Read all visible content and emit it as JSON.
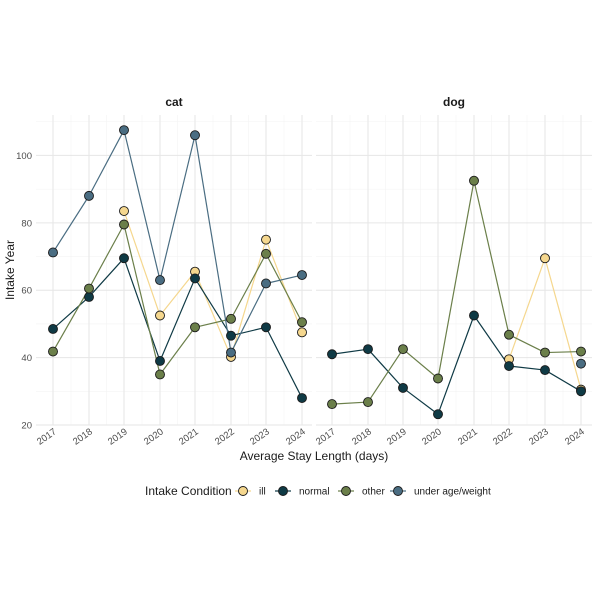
{
  "chart_data": {
    "type": "line",
    "facets": [
      "cat",
      "dog"
    ],
    "xlabel": "Average Stay Length (days)",
    "ylabel": "Intake Year",
    "x": [
      "2017",
      "2018",
      "2019",
      "2020",
      "2021",
      "2022",
      "2023",
      "2024"
    ],
    "ylim": [
      20,
      112
    ],
    "yticks": [
      "20",
      "40",
      "60",
      "80",
      "100"
    ],
    "ytick_values": [
      20,
      40,
      60,
      80,
      100
    ],
    "grid": true,
    "legend": {
      "title": "Intake Condition",
      "position": "bottom",
      "entries": [
        "ill",
        "normal",
        "other",
        "under age/weight"
      ]
    },
    "series": [
      {
        "name": "ill",
        "color": "#F5D78E",
        "facet": "cat",
        "values": [
          null,
          null,
          83.5,
          52.5,
          65.5,
          40.2,
          75,
          47.5
        ]
      },
      {
        "name": "normal",
        "color": "#0F3A45",
        "facet": "cat",
        "values": [
          48.5,
          58,
          69.5,
          39,
          63.5,
          46.5,
          49,
          28
        ]
      },
      {
        "name": "other",
        "color": "#6B7F4A",
        "facet": "cat",
        "values": [
          41.8,
          60.5,
          79.5,
          35,
          49,
          51.5,
          70.8,
          50.5
        ]
      },
      {
        "name": "under age/weight",
        "color": "#4A6D82",
        "facet": "cat",
        "values": [
          71.2,
          88,
          107.5,
          63,
          106,
          41.5,
          62,
          64.5
        ]
      },
      {
        "name": "ill",
        "color": "#F5D78E",
        "facet": "dog",
        "values": [
          null,
          null,
          null,
          null,
          null,
          39.5,
          69.5,
          30.5
        ]
      },
      {
        "name": "normal",
        "color": "#0F3A45",
        "facet": "dog",
        "values": [
          41,
          42.5,
          31,
          23.2,
          52.5,
          37.5,
          36.3,
          30
        ]
      },
      {
        "name": "other",
        "color": "#6B7F4A",
        "facet": "dog",
        "values": [
          26.2,
          26.8,
          42.5,
          33.8,
          92.5,
          46.8,
          41.5,
          41.8
        ]
      },
      {
        "name": "under age/weight",
        "color": "#4A6D82",
        "facet": "dog",
        "values": [
          null,
          null,
          null,
          null,
          null,
          null,
          null,
          38.2
        ]
      }
    ]
  }
}
